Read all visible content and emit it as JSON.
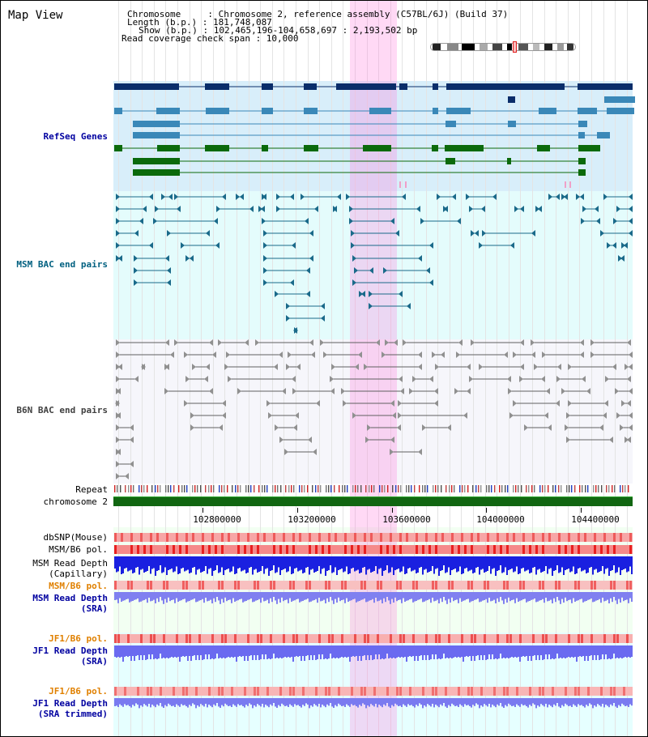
{
  "view_title": "Map View",
  "info": {
    "chromosome_line": "Chromosome     : Chromosome 2, reference assembly (C57BL/6J) (Build 37)",
    "length_line": "Length (b.p.) : 181,748,087",
    "show_line": "Show (b.p.) : 102,465,196-104,658,697 : 2,193,502 bp",
    "span_line": "Read coverage check span : 10,000"
  },
  "tracks": {
    "refseq": "RefSeq Genes",
    "msm_bac": "MSM BAC end pairs",
    "b6n_bac": "B6N BAC end pairs",
    "repeat": "Repeat",
    "chromosome": "chromosome 2",
    "dbsnp": "dbSNP(Mouse)",
    "msm_b6_pol_1": "MSM/B6 pol.",
    "msm_read_depth_cap_1": "MSM Read Depth",
    "msm_read_depth_cap_2": "(Capillary)",
    "msm_b6_pol_2": "MSM/B6 pol.",
    "msm_read_depth_sra_1": "MSM Read Depth",
    "msm_read_depth_sra_2": "(SRA)",
    "jf1_b6_pol_1": "JF1/B6 pol.",
    "jf1_read_depth_1": "JF1 Read Depth",
    "jf1_read_depth_2": "(SRA)",
    "jf1_b6_pol_2": "JF1/B6 pol.",
    "jf1_trim_1": "JF1 Read Depth",
    "jf1_trim_2": "(SRA trimmed)"
  },
  "axis_ticks": [
    "102800000",
    "103200000",
    "103600000",
    "104000000",
    "104400000"
  ],
  "colors": {
    "refseq_bg": "#d8eefa",
    "bac_bg": "#e4fafa",
    "b6n_bg": "#f6f6fa",
    "gene_dark": "#0a2d6a",
    "gene_mid": "#3a88b8",
    "gene_green": "#0b6a0b",
    "bac_line": "#1a6a8a",
    "b6n_line": "#606060",
    "highlight": "#ffb4ec",
    "depth_blue": "#1a20e0",
    "depth_light": "#8080f0",
    "pol_red": "#f06060"
  }
}
